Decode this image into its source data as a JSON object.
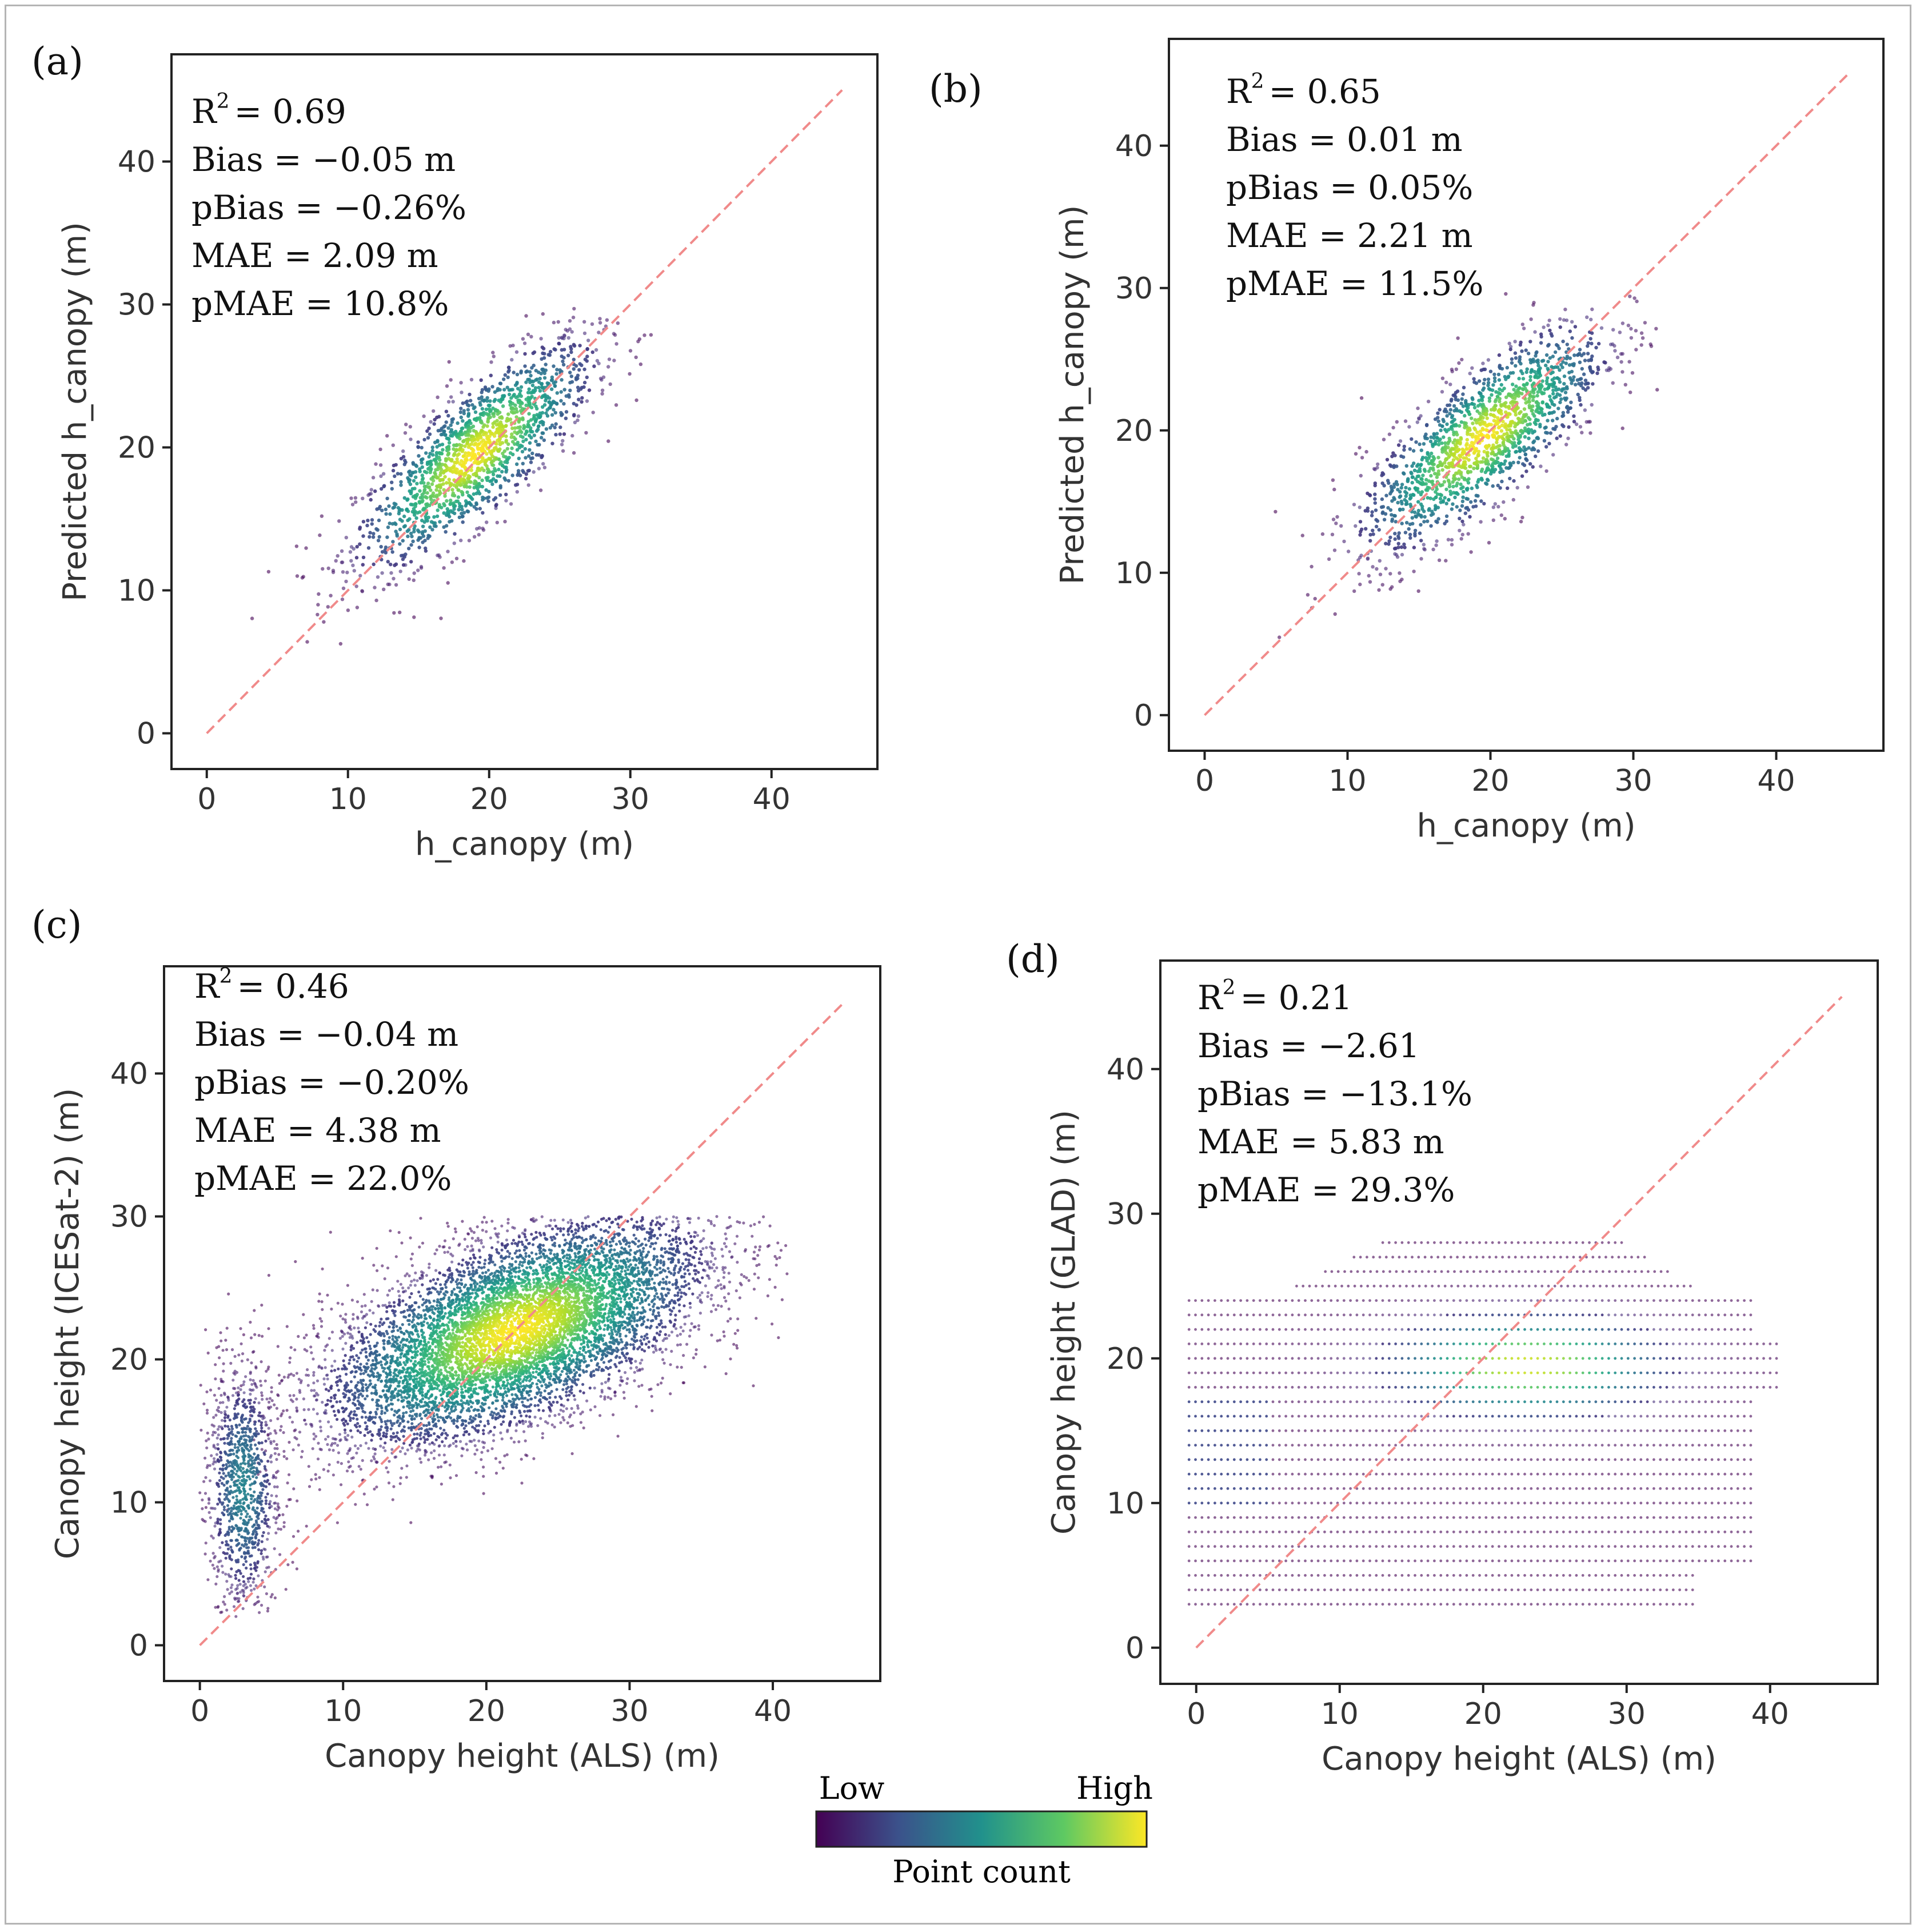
{
  "figure": {
    "colorbar": {
      "low_label": "Low",
      "high_label": "High",
      "title": "Point count",
      "colors": [
        "#440154",
        "#3b528b",
        "#21918c",
        "#5ec962",
        "#fde725"
      ]
    },
    "reference_line_color": "#f08a8a"
  },
  "chart_data": [
    {
      "type": "scatter",
      "panel_label": "(a)",
      "xlabel": "h_canopy (m)",
      "ylabel": "Predicted h_canopy (m)",
      "xlim": [
        -2.5,
        47.5
      ],
      "ylim": [
        -2.5,
        47.5
      ],
      "xticks": [
        0,
        10,
        20,
        30,
        40
      ],
      "yticks": [
        0,
        10,
        20,
        30,
        40
      ],
      "reference_line": {
        "from": [
          0,
          0
        ],
        "to": [
          45,
          45
        ]
      },
      "stats": {
        "r2_label": "R",
        "r2_value": "= 0.69",
        "bias": "Bias = −0.05 m",
        "pbias": "pBias = −0.26%",
        "mae": "MAE = 2.09 m",
        "pmae": "pMAE = 10.8%"
      },
      "density": {
        "kind": "cloud",
        "n": 1600,
        "center": [
          19,
          19.5
        ],
        "x_sd": 4.2,
        "slope": 0.75,
        "y_sd": 2.4,
        "x_range": [
          1,
          33
        ],
        "y_range": [
          3,
          30
        ],
        "point_radius": 3.2
      }
    },
    {
      "type": "scatter",
      "panel_label": "(b)",
      "xlabel": "h_canopy (m)",
      "ylabel": "Predicted h_canopy (m)",
      "xlim": [
        -2.5,
        47.5
      ],
      "ylim": [
        -2.5,
        47.5
      ],
      "xticks": [
        0,
        10,
        20,
        30,
        40
      ],
      "yticks": [
        0,
        10,
        20,
        30,
        40
      ],
      "reference_line": {
        "from": [
          0,
          0
        ],
        "to": [
          45,
          45
        ]
      },
      "stats": {
        "r2_label": "R",
        "r2_value": "= 0.65",
        "bias": "Bias = 0.01 m",
        "pbias": "pBias = 0.05%",
        "mae": "MAE = 2.21 m",
        "pmae": "pMAE = 11.5%"
      },
      "density": {
        "kind": "cloud",
        "n": 1600,
        "center": [
          19.5,
          19.5
        ],
        "x_sd": 4.3,
        "slope": 0.72,
        "y_sd": 2.5,
        "x_range": [
          1,
          33
        ],
        "y_range": [
          3,
          30
        ],
        "point_radius": 3.2
      }
    },
    {
      "type": "scatter",
      "panel_label": "(c)",
      "xlabel": "Canopy height (ALS) (m)",
      "ylabel": "Canopy height (ICESat-2) (m)",
      "xlim": [
        -2.5,
        47.5
      ],
      "ylim": [
        -2.5,
        47.5
      ],
      "xticks": [
        0,
        10,
        20,
        30,
        40
      ],
      "yticks": [
        0,
        10,
        20,
        30,
        40
      ],
      "reference_line": {
        "from": [
          0,
          0
        ],
        "to": [
          45,
          45
        ]
      },
      "stats": {
        "r2_label": "R",
        "r2_value": "= 0.46",
        "bias": "Bias = −0.04 m",
        "pbias": "pBias = −0.20%",
        "mae": "MAE = 4.38 m",
        "pmae": "pMAE = 22.0%"
      },
      "density": {
        "kind": "dense",
        "n": 9000,
        "center": [
          22,
          22
        ],
        "x_sd": 6.5,
        "slope": 0.35,
        "y_sd": 3.2,
        "x_range": [
          0,
          41
        ],
        "y_range": [
          2,
          30
        ],
        "point_radius": 2.6,
        "secondary": {
          "center": [
            3,
            11
          ],
          "x_sd": 1.3,
          "y_sd": 4.5,
          "share": 0.12
        }
      }
    },
    {
      "type": "scatter",
      "panel_label": "(d)",
      "xlabel": "Canopy height (ALS) (m)",
      "ylabel": "Canopy height (GLAD) (m)",
      "xlim": [
        -2.5,
        47.5
      ],
      "ylim": [
        -2.5,
        47.5
      ],
      "xticks": [
        0,
        10,
        20,
        30,
        40
      ],
      "yticks": [
        0,
        10,
        20,
        30,
        40
      ],
      "reference_line": {
        "from": [
          0,
          0
        ],
        "to": [
          45,
          45
        ]
      },
      "stats": {
        "r2_label": "R",
        "r2_value": "= 0.21",
        "bias": "Bias = −2.61",
        "pbias": "pBias = −13.1%",
        "mae": "MAE = 5.83 m",
        "pmae": "pMAE = 29.3%"
      },
      "density": {
        "kind": "banded",
        "y_levels": [
          3,
          4,
          5,
          6,
          7,
          8,
          9,
          10,
          11,
          12,
          13,
          14,
          15,
          16,
          17,
          18,
          19,
          20,
          21,
          22,
          23,
          24,
          25,
          26,
          27,
          28
        ],
        "hot_spot": [
          23,
          19.5
        ],
        "point_radius": 2.4
      }
    }
  ]
}
